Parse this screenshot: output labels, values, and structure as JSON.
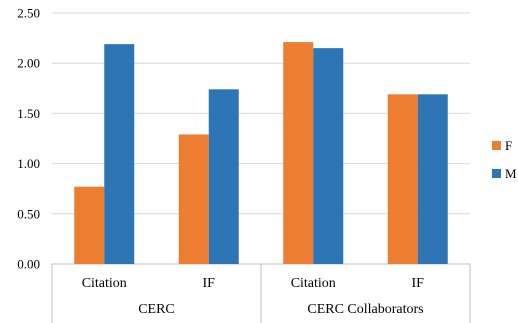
{
  "chart_data": {
    "type": "bar",
    "groups": [
      {
        "label": "CERC",
        "categories": [
          "Citation",
          "IF"
        ]
      },
      {
        "label": "CERC Collaborators",
        "categories": [
          "Citation",
          "IF"
        ]
      }
    ],
    "categories": [
      "Citation",
      "IF",
      "Citation",
      "IF"
    ],
    "series": [
      {
        "name": "F",
        "color": "#ED7D31",
        "values": [
          0.77,
          1.29,
          2.21,
          1.69
        ]
      },
      {
        "name": "M",
        "color": "#2E75B6",
        "values": [
          2.19,
          1.74,
          2.15,
          1.69
        ]
      }
    ],
    "ylim": [
      0,
      2.5
    ],
    "yticks": [
      "0.00",
      "0.50",
      "1.00",
      "1.50",
      "2.00",
      "2.50"
    ],
    "ytick_values": [
      0,
      0.5,
      1.0,
      1.5,
      2.0,
      2.5
    ],
    "grid": true,
    "legend": "right",
    "title": "",
    "xlabel": "",
    "ylabel": ""
  }
}
